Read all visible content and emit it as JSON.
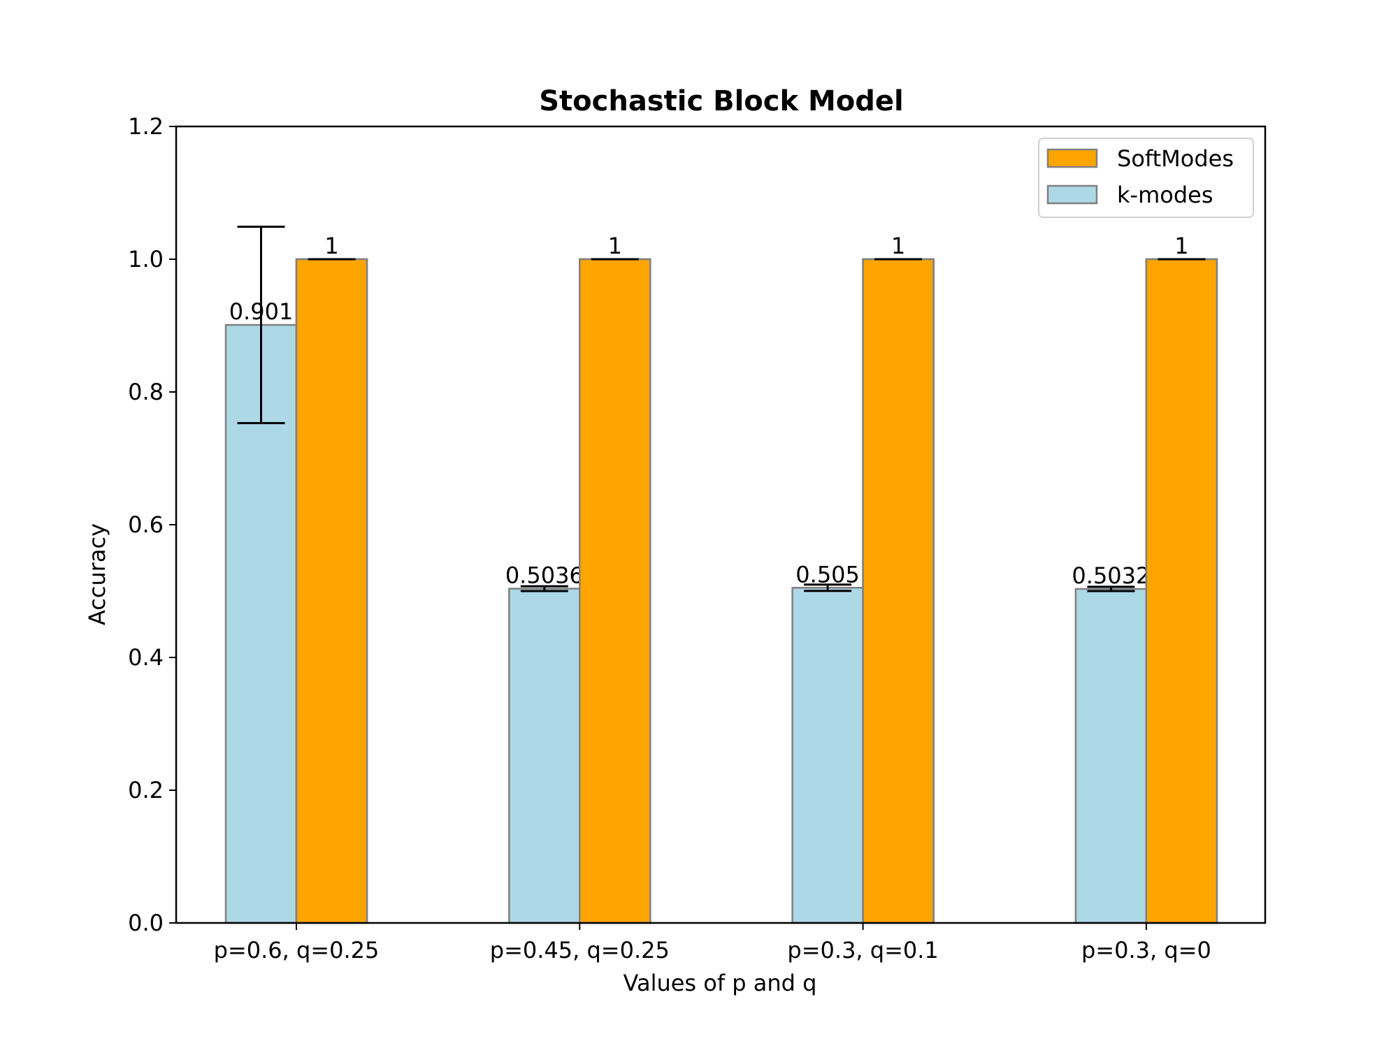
{
  "chart_data": {
    "type": "bar",
    "title": "Stochastic Block Model",
    "xlabel": "Values of p and q",
    "ylabel": "Accuracy",
    "ylim": [
      0,
      1.2
    ],
    "yticks": [
      "0.0",
      "0.2",
      "0.4",
      "0.6",
      "0.8",
      "1.0",
      "1.2"
    ],
    "categories": [
      "p=0.6, q=0.25",
      "p=0.45, q=0.25",
      "p=0.3, q=0.1",
      "p=0.3, q=0"
    ],
    "series": [
      {
        "name": "k-modes",
        "color": "#add8e6",
        "values": [
          0.901,
          0.5036,
          0.505,
          0.5032
        ],
        "errors": [
          0.148,
          0.0036,
          0.0048,
          0.0032
        ],
        "labels": [
          "0.901",
          "0.5036",
          "0.505",
          "0.5032"
        ]
      },
      {
        "name": "SoftModes",
        "color": "#ffa500",
        "values": [
          1,
          1,
          1,
          1
        ],
        "errors": [
          0,
          0,
          0,
          0
        ],
        "labels": [
          "1",
          "1",
          "1",
          "1"
        ]
      }
    ],
    "legend": [
      {
        "name": "SoftModes",
        "color": "#ffa500"
      },
      {
        "name": "k-modes",
        "color": "#add8e6"
      }
    ],
    "legend_position": "top-right",
    "grid": false
  }
}
